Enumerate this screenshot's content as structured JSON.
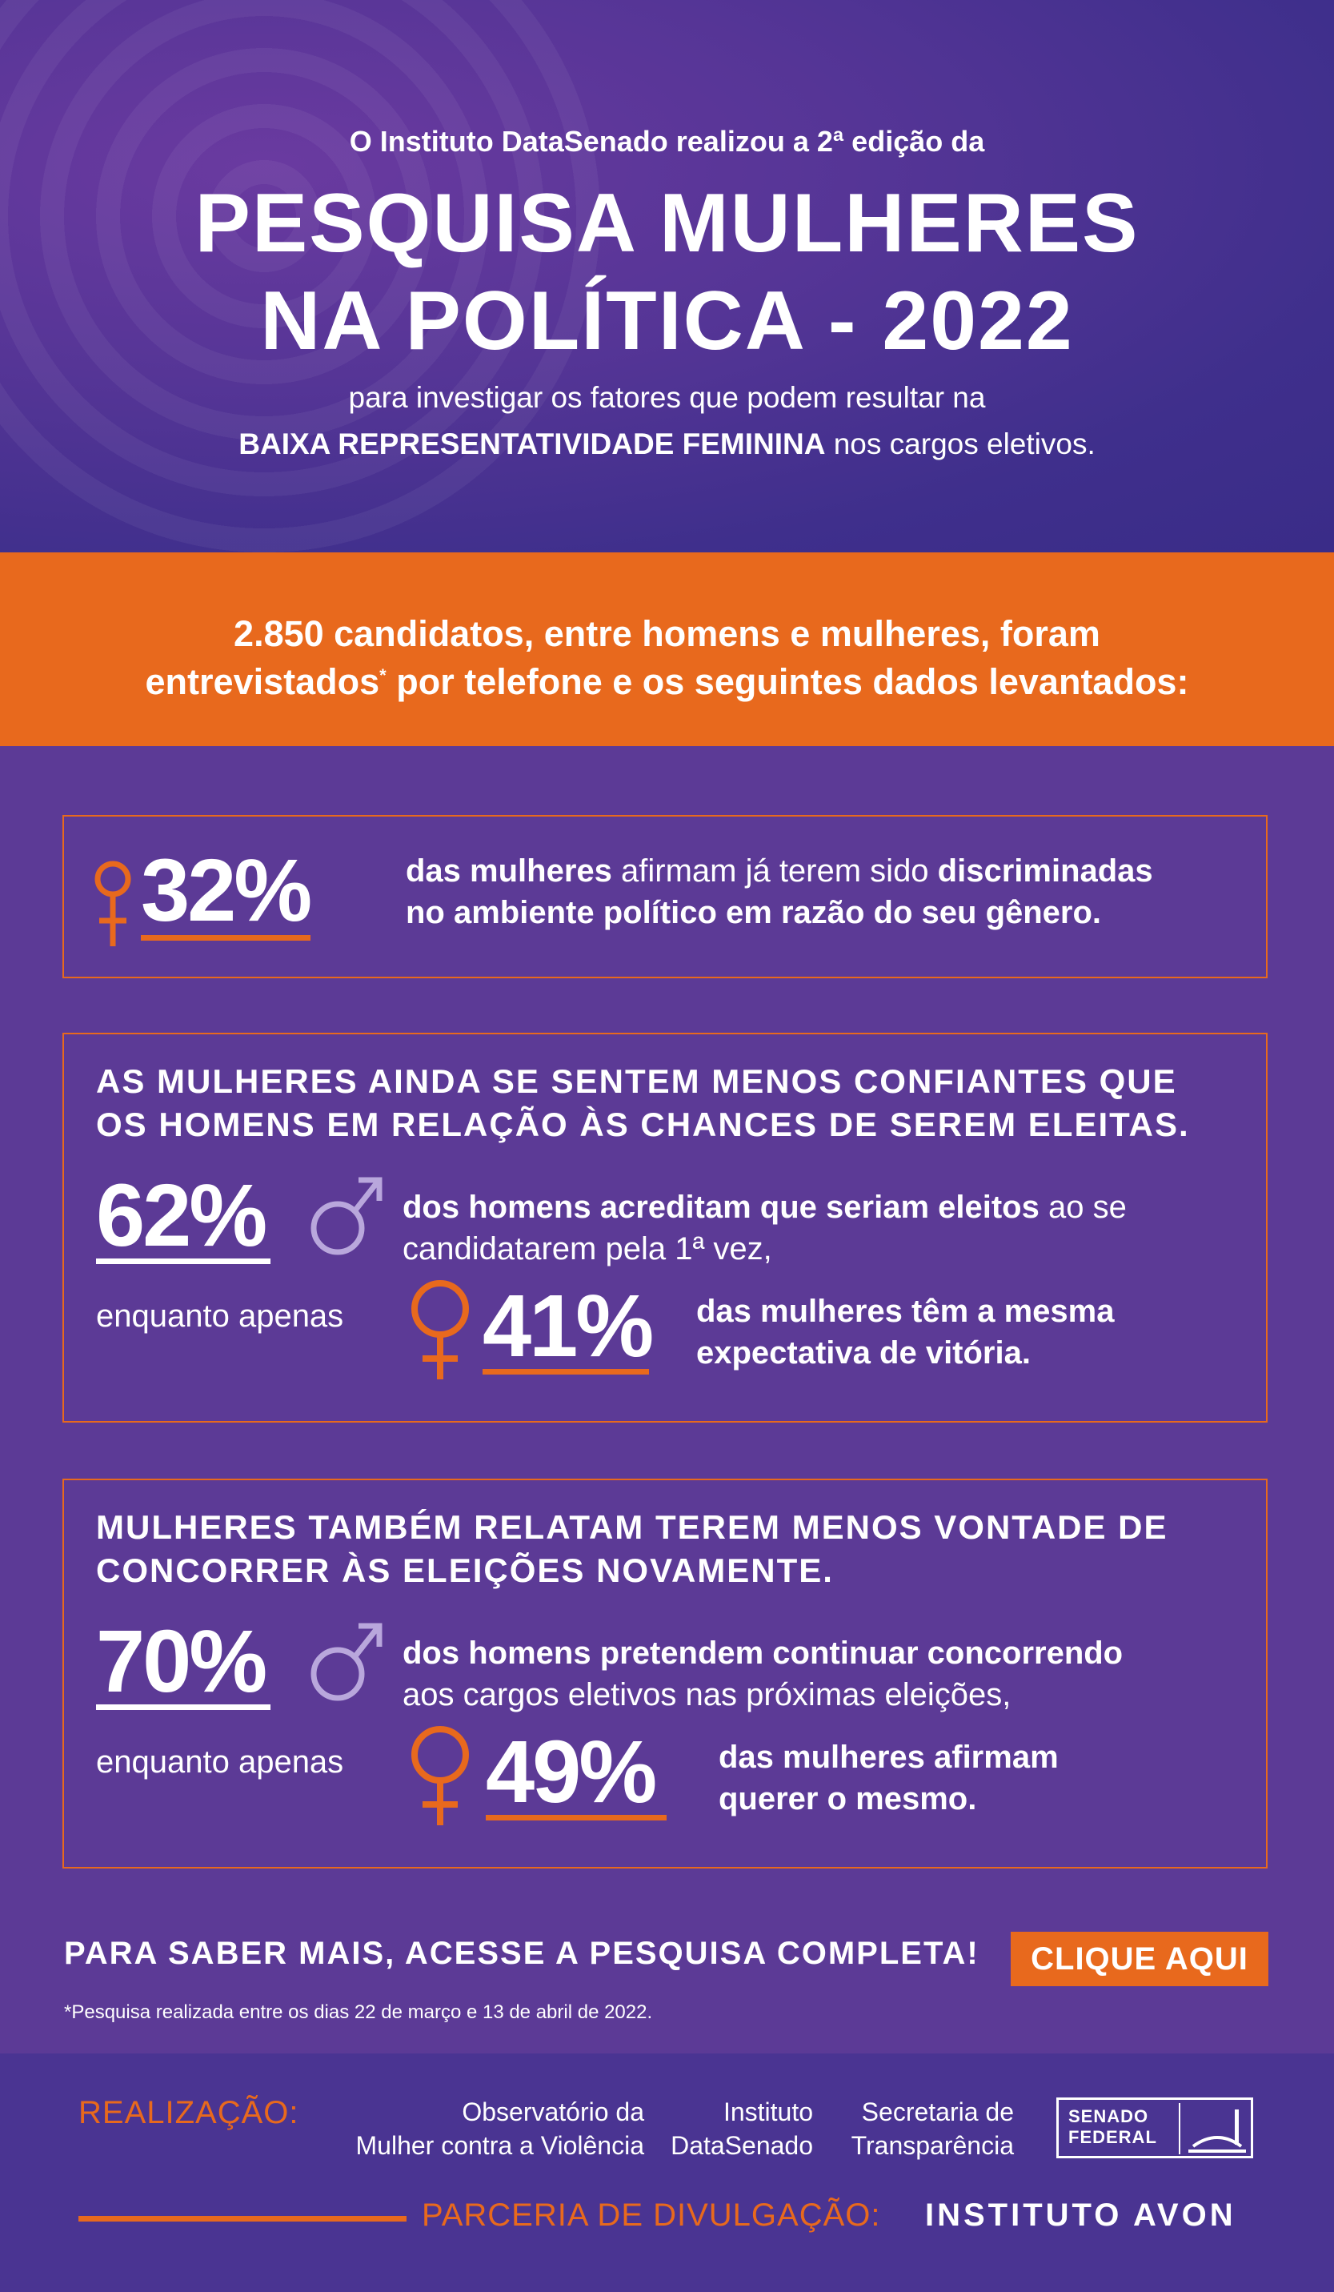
{
  "header": {
    "intro": "O Instituto DataSenado realizou a 2ª edição da",
    "title_line1": "PESQUISA MULHERES",
    "title_line2": "NA POLÍTICA - 2022",
    "sub_line1": "para investigar os fatores que podem resultar na",
    "sub_bold": "BAIXA REPRESENTATIVIDADE FEMININA",
    "sub_rest": " nos cargos eletivos."
  },
  "band": {
    "line1": "2.850 candidatos, entre homens e mulheres, foram",
    "line2_a": "entrevistados",
    "line2_sup": "*",
    "line2_b": " por telefone e os seguintes dados levantados:"
  },
  "stat1": {
    "value": "32%",
    "text_b1": "das mulheres",
    "text_l1": " afirmam já terem sido ",
    "text_b2": "discriminadas",
    "text_line2": "no ambiente político em razão do seu gênero."
  },
  "stat2": {
    "heading1": "AS MULHERES AINDA SE SENTEM MENOS CONFIANTES QUE",
    "heading2": "OS HOMENS EM RELAÇÃO ÀS CHANCES DE SEREM ELEITAS.",
    "men_value": "62%",
    "men_bold": "dos homens acreditam que seriam eleitos",
    "men_light1": " ao se",
    "men_light2": "candidatarem pela 1ª vez,",
    "enquanto": "enquanto apenas",
    "women_value": "41%",
    "women_line1": "das mulheres têm a mesma",
    "women_line2": "expectativa de vitória."
  },
  "stat3": {
    "heading1": "MULHERES TAMBÉM RELATAM TEREM MENOS VONTADE DE",
    "heading2": "CONCORRER ÀS ELEIÇÕES NOVAMENTE.",
    "men_value": "70%",
    "men_bold": "dos homens pretendem continuar concorrendo",
    "men_light": "aos cargos eletivos nas próximas eleições,",
    "enquanto": "enquanto apenas",
    "women_value": "49%",
    "women_line1": "das mulheres afirmam",
    "women_line2": "querer o mesmo."
  },
  "cta": {
    "text": "PARA SABER MAIS, ACESSE A PESQUISA COMPLETA!",
    "button": "CLIQUE AQUI",
    "note": "*Pesquisa realizada entre os dias 22 de março e 13 de abril de 2022."
  },
  "footer": {
    "realizacao": "REALIZAÇÃO:",
    "org1_l1": "Observatório da",
    "org1_l2": "Mulher contra a Violência",
    "org2_l1": "Instituto",
    "org2_l2": "DataSenado",
    "org3_l1": "Secretaria de",
    "org3_l2": "Transparência",
    "senado_l1": "SENADO",
    "senado_l2": "FEDERAL",
    "parceria": "PARCERIA DE DIVULGAÇÃO:",
    "avon": "INSTITUTO AVON"
  },
  "colors": {
    "orange": "#e8691d",
    "purple": "#5c3a96",
    "male_icon": "#b9a7dc"
  },
  "icons": [
    "female-symbol-icon",
    "male-symbol-icon",
    "senado-building-icon"
  ]
}
